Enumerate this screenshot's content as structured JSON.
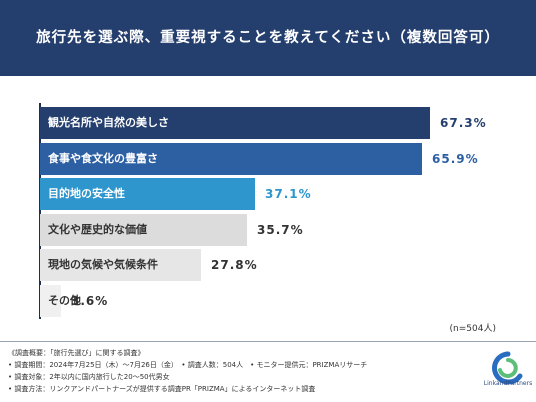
{
  "header": {
    "title": "旅行先を選ぶ際、重要視することを教えてください（複数回答可）"
  },
  "chart_data": {
    "type": "bar",
    "orientation": "horizontal",
    "title": "旅行先を選ぶ際、重要視することを教えてください（複数回答可）",
    "categories": [
      "観光名所や自然の美しさ",
      "食事や食文化の豊富さ",
      "目的地の安全性",
      "文化や歴史的な価値",
      "現地の気候や気候条件",
      "その他"
    ],
    "values": [
      67.3,
      65.9,
      37.1,
      35.7,
      27.8,
      3.6
    ],
    "value_labels": [
      "67.3%",
      "65.9%",
      "37.1%",
      "35.7%",
      "27.8%",
      "3.6%"
    ],
    "unit": "%",
    "xlim": [
      0,
      100
    ],
    "bar_colors": [
      "#243f6e",
      "#2d5fa3",
      "#2e96cc",
      "#dcdcdc",
      "#e6e6e6",
      "#f0f0f0"
    ],
    "label_colors": [
      "#ffffff",
      "#ffffff",
      "#ffffff",
      "#333333",
      "#333333",
      "#333333"
    ],
    "value_colors": [
      "#243f6e",
      "#2d5fa3",
      "#2e96cc",
      "#333333",
      "#333333",
      "#333333"
    ],
    "sample_note": "(n=504人)"
  },
  "footer": {
    "lines": [
      "《調査概要：「旅行先選び」に関する調査》",
      "• 調査期間：2024年7月25日（木）〜7月26日（金）　• 調査人数：504人　• モニター提供元：PRIZMAリサーチ",
      "• 調査対象：2年以内に国内旅行した20〜50代男女",
      "• 調査方法：リンクアンドパートナーズが提供する調査PR「PRIZMA」によるインターネット調査"
    ]
  },
  "logo": {
    "text": "LinkandPartners",
    "colors": {
      "blue": "#2a6cc0",
      "green": "#5bbf7a"
    }
  }
}
